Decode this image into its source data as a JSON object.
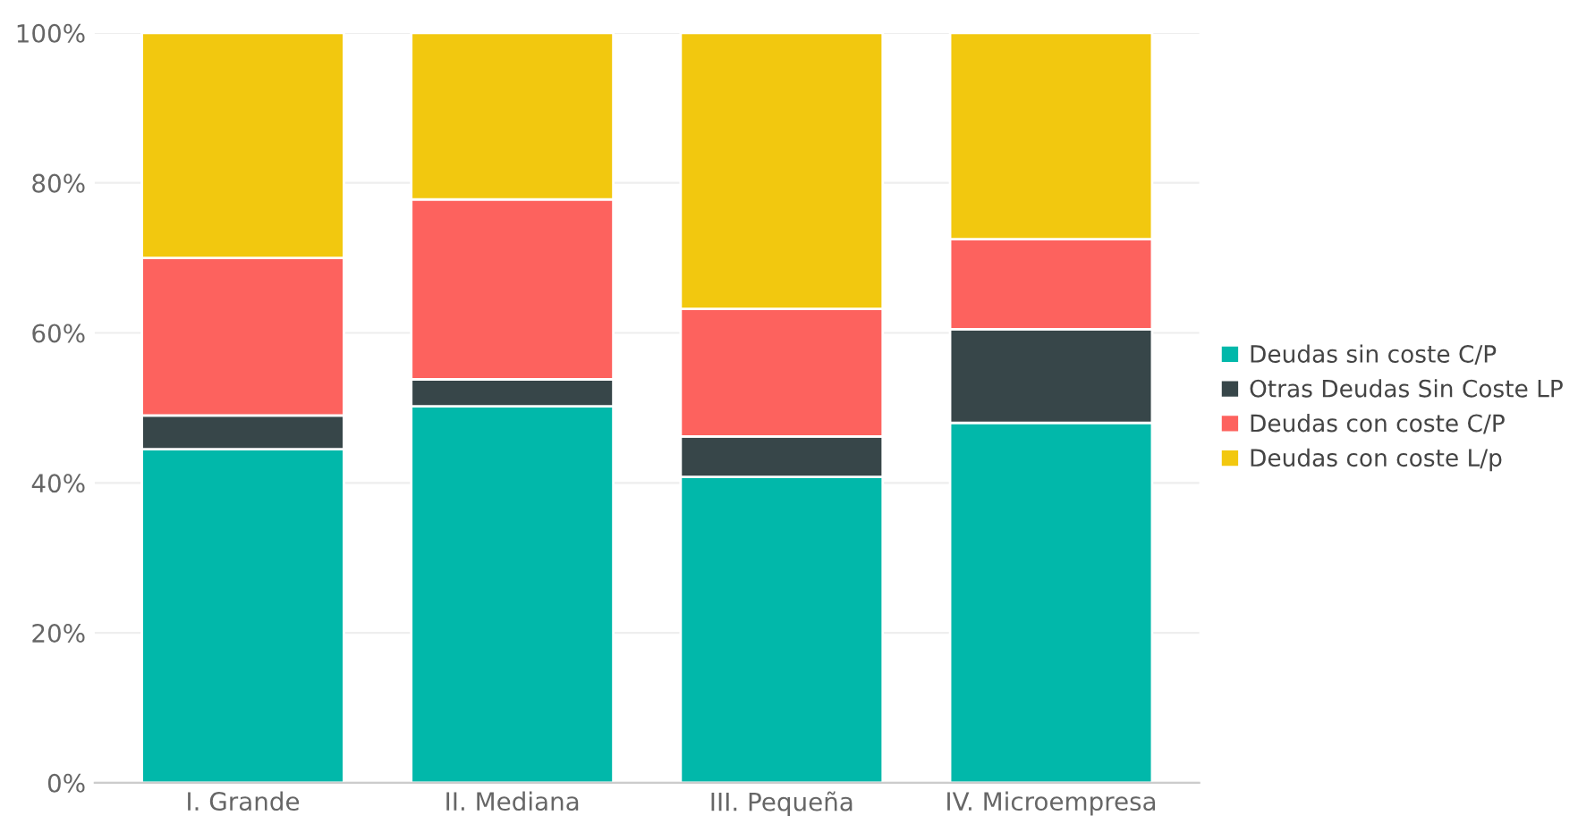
{
  "chart_data": {
    "type": "bar",
    "stacked": true,
    "categories": [
      "I. Grande",
      "II. Mediana",
      "III. Pequeña",
      "IV. Microempresa"
    ],
    "series": [
      {
        "name": "Deudas sin coste C/P",
        "color": "#01b8aa",
        "values": [
          44.5,
          50.2,
          40.8,
          48
        ]
      },
      {
        "name": "Otras Deudas Sin Coste LP",
        "color": "#374649",
        "values": [
          4.5,
          3.6,
          5.4,
          12.5
        ]
      },
      {
        "name": "Deudas con coste C/P",
        "color": "#fd625e",
        "values": [
          21,
          24,
          17,
          12
        ]
      },
      {
        "name": "Deudas con coste L/p",
        "color": "#f2c80f",
        "values": [
          30,
          22.2,
          36.8,
          27.5
        ]
      }
    ],
    "ylim": [
      0,
      100
    ],
    "yticks": [
      {
        "value": 0,
        "label": "0%"
      },
      {
        "value": 20,
        "label": "20%"
      },
      {
        "value": 40,
        "label": "40%"
      },
      {
        "value": 60,
        "label": "60%"
      },
      {
        "value": 80,
        "label": "80%"
      },
      {
        "value": 100,
        "label": "100%"
      }
    ],
    "grid": "y",
    "legend": "right"
  }
}
